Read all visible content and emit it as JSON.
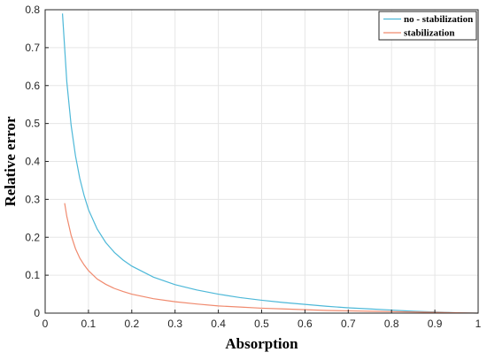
{
  "chart_data": {
    "type": "line",
    "xlabel": "Absorption",
    "ylabel": "Relative error",
    "xlim": [
      0,
      1
    ],
    "ylim": [
      0,
      0.8
    ],
    "xticks": [
      "0",
      "0.1",
      "0.2",
      "0.3",
      "0.4",
      "0.5",
      "0.6",
      "0.7",
      "0.8",
      "0.9",
      "1"
    ],
    "yticks": [
      "0",
      "0.1",
      "0.2",
      "0.3",
      "0.4",
      "0.5",
      "0.6",
      "0.7",
      "0.8"
    ],
    "grid": true,
    "legend_position": "top-right",
    "series": [
      {
        "name": "no - stabilization",
        "color": "#4db8d8",
        "x": [
          0.04,
          0.05,
          0.06,
          0.07,
          0.08,
          0.09,
          0.1,
          0.12,
          0.14,
          0.16,
          0.18,
          0.2,
          0.25,
          0.3,
          0.35,
          0.4,
          0.45,
          0.5,
          0.55,
          0.6,
          0.65,
          0.7,
          0.75,
          0.8,
          0.85,
          0.9,
          0.95,
          1.0
        ],
        "y": [
          0.79,
          0.61,
          0.495,
          0.415,
          0.355,
          0.31,
          0.273,
          0.222,
          0.186,
          0.16,
          0.14,
          0.124,
          0.095,
          0.075,
          0.061,
          0.05,
          0.041,
          0.034,
          0.028,
          0.023,
          0.018,
          0.014,
          0.011,
          0.008,
          0.005,
          0.003,
          0.001,
          0.0
        ]
      },
      {
        "name": "stabilization",
        "color": "#f08a6e",
        "x": [
          0.045,
          0.05,
          0.06,
          0.07,
          0.08,
          0.09,
          0.1,
          0.12,
          0.14,
          0.16,
          0.18,
          0.2,
          0.25,
          0.3,
          0.35,
          0.4,
          0.45,
          0.5,
          0.55,
          0.6,
          0.65,
          0.7,
          0.75,
          0.8,
          0.85,
          0.9,
          0.95,
          1.0
        ],
        "y": [
          0.29,
          0.255,
          0.205,
          0.17,
          0.145,
          0.127,
          0.112,
          0.09,
          0.076,
          0.065,
          0.057,
          0.05,
          0.038,
          0.03,
          0.024,
          0.019,
          0.016,
          0.013,
          0.011,
          0.009,
          0.007,
          0.006,
          0.005,
          0.004,
          0.003,
          0.002,
          0.001,
          0.0
        ]
      }
    ]
  }
}
